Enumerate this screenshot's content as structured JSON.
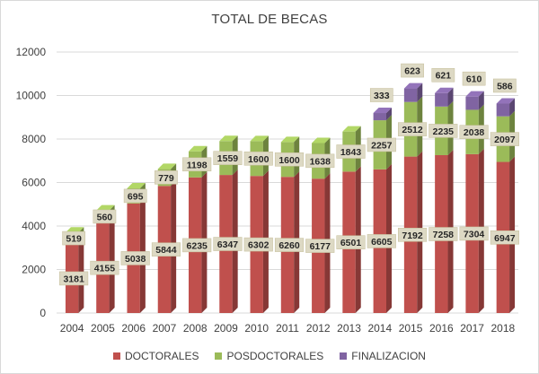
{
  "chart_data": {
    "type": "bar",
    "stacked": true,
    "title": "TOTAL DE BECAS",
    "categories": [
      "2004",
      "2005",
      "2006",
      "2007",
      "2008",
      "2009",
      "2010",
      "2011",
      "2012",
      "2013",
      "2014",
      "2015",
      "2016",
      "2017",
      "2018"
    ],
    "series": [
      {
        "name": "DOCTORALES",
        "color": "#c0504d",
        "values": [
          3181,
          4155,
          5038,
          5844,
          6235,
          6347,
          6302,
          6260,
          6177,
          6501,
          6605,
          7192,
          7258,
          7304,
          6947
        ]
      },
      {
        "name": "POSDOCTORALES",
        "color": "#9bbb59",
        "values": [
          519,
          560,
          695,
          779,
          1198,
          1559,
          1600,
          1600,
          1638,
          1843,
          2257,
          2512,
          2235,
          2038,
          2097
        ]
      },
      {
        "name": "FINALIZACION",
        "color": "#8064a2",
        "values": [
          null,
          null,
          null,
          null,
          null,
          null,
          null,
          null,
          null,
          null,
          333,
          623,
          621,
          610,
          586
        ]
      }
    ],
    "ylim": [
      0,
      12000
    ],
    "yticks": [
      0,
      2000,
      4000,
      6000,
      8000,
      10000,
      12000
    ],
    "grid": true,
    "legend": "bottom"
  }
}
